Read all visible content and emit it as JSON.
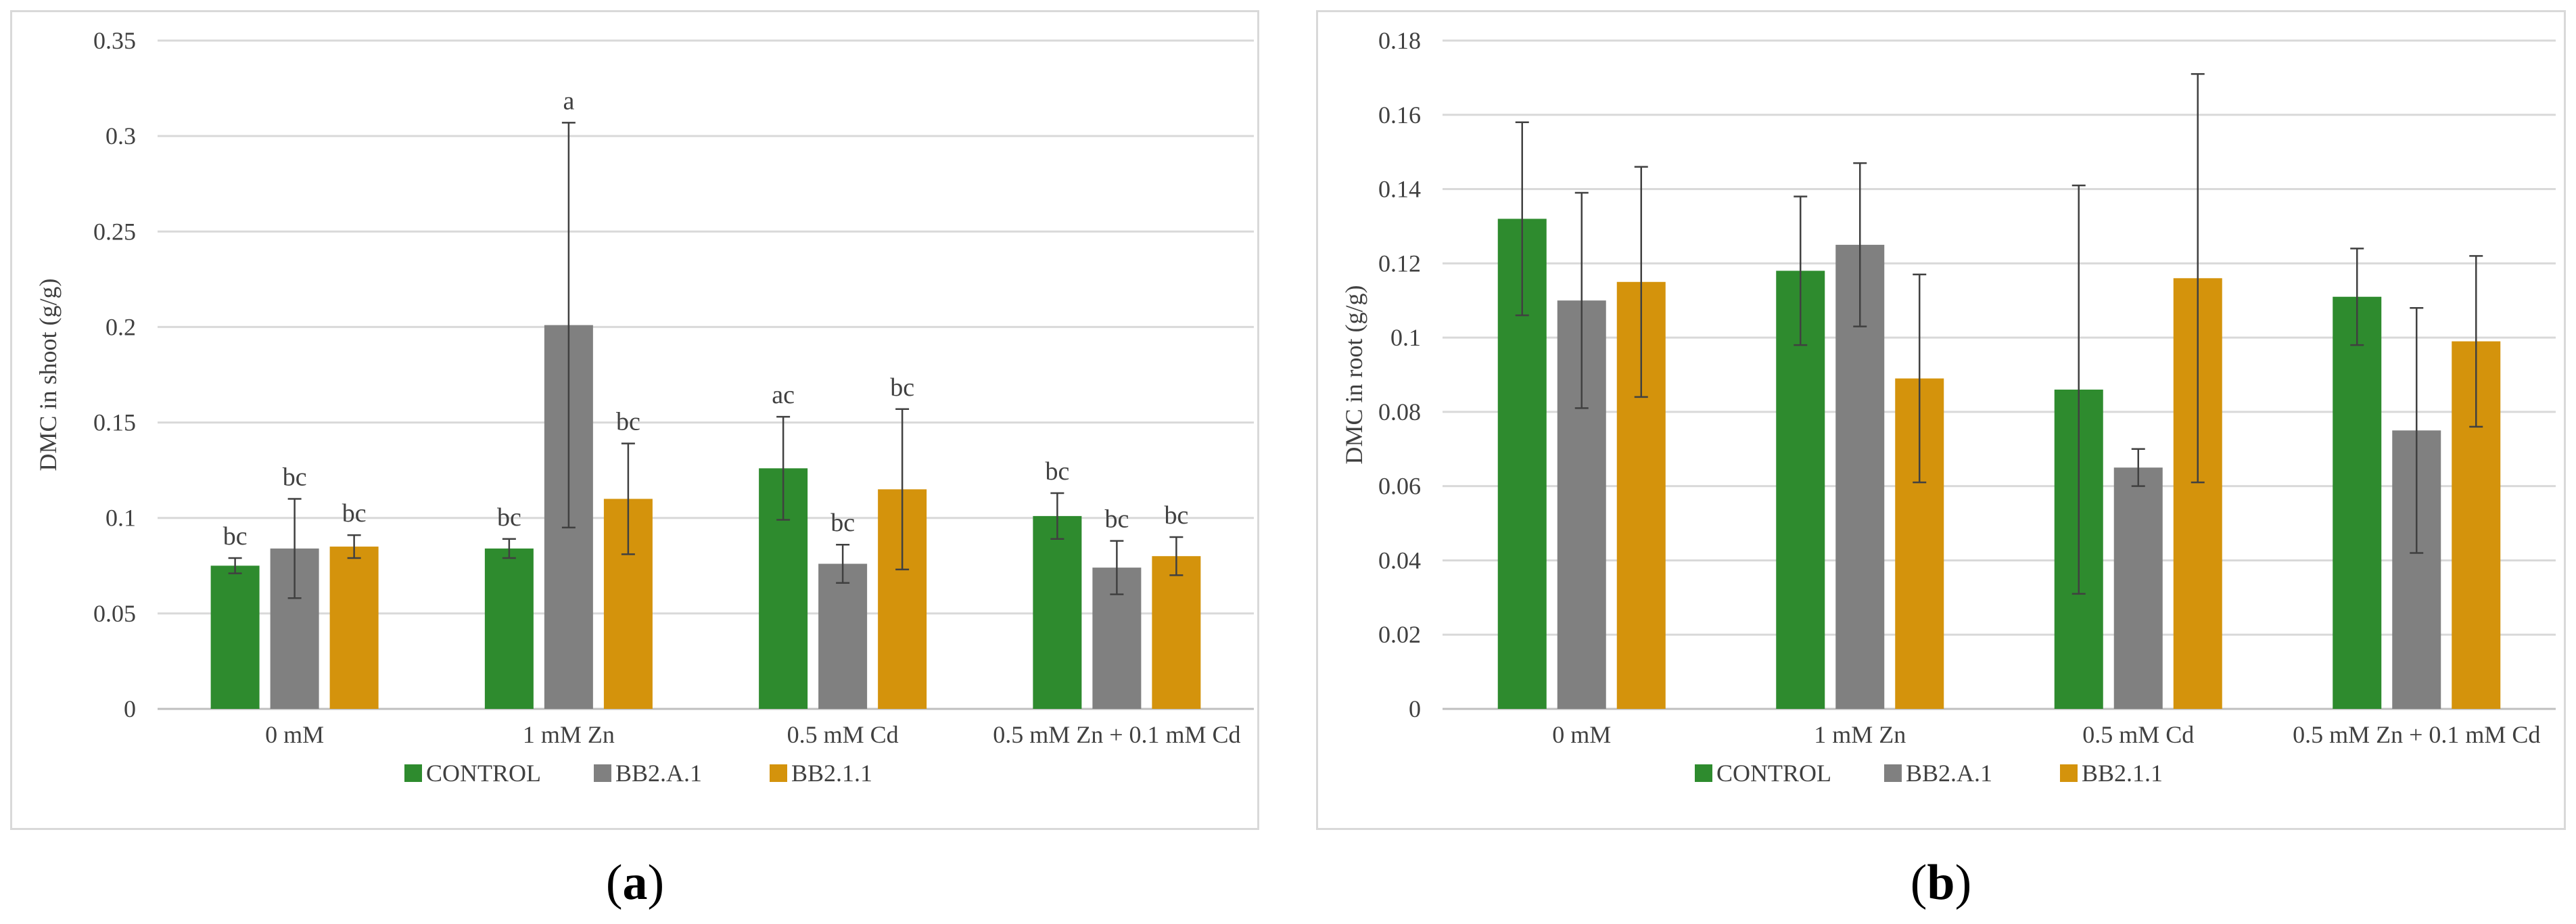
{
  "chart_data": [
    {
      "type": "bar",
      "panel_label": "a",
      "title": "",
      "xlabel": "",
      "ylabel": "DMC in shoot (g/g)",
      "ylim": [
        0,
        0.35
      ],
      "yticks": [
        0,
        0.05,
        0.1,
        0.15,
        0.2,
        0.25,
        0.3,
        0.35
      ],
      "ytick_labels": [
        "0",
        "0.05",
        "0.1",
        "0.15",
        "0.2",
        "0.25",
        "0.3",
        "0.35"
      ],
      "grid": true,
      "legend_position": "bottom",
      "categories": [
        "0 mM",
        "1 mM Zn",
        "0.5 mM Cd",
        "0.5 mM Zn + 0.1 mM Cd"
      ],
      "series": [
        {
          "name": "CONTROL",
          "color": "#2e8b2e",
          "values": [
            0.075,
            0.084,
            0.126,
            0.101
          ],
          "errors": [
            0.004,
            0.005,
            0.027,
            0.012
          ],
          "labels": [
            "bc",
            "bc",
            "ac",
            "bc"
          ]
        },
        {
          "name": "BB2.A.1",
          "color": "#808080",
          "values": [
            0.084,
            0.201,
            0.076,
            0.074
          ],
          "errors": [
            0.026,
            0.106,
            0.01,
            0.014
          ],
          "labels": [
            "bc",
            "a",
            "bc",
            "bc"
          ]
        },
        {
          "name": "BB2.1.1",
          "color": "#d4930c",
          "values": [
            0.085,
            0.11,
            0.115,
            0.08
          ],
          "errors": [
            0.006,
            0.029,
            0.042,
            0.01
          ],
          "labels": [
            "bc",
            "bc",
            "bc",
            "bc"
          ]
        }
      ]
    },
    {
      "type": "bar",
      "panel_label": "b",
      "title": "",
      "xlabel": "",
      "ylabel": "DMC in root (g/g)",
      "ylim": [
        0,
        0.18
      ],
      "yticks": [
        0,
        0.02,
        0.04,
        0.06,
        0.08,
        0.1,
        0.12,
        0.14,
        0.16,
        0.18
      ],
      "ytick_labels": [
        "0",
        "0.02",
        "0.04",
        "0.06",
        "0.08",
        "0.1",
        "0.12",
        "0.14",
        "0.16",
        "0.18"
      ],
      "grid": true,
      "legend_position": "bottom",
      "categories": [
        "0 mM",
        "1 mM Zn",
        "0.5 mM Cd",
        "0.5 mM Zn + 0.1 mM Cd"
      ],
      "series": [
        {
          "name": "CONTROL",
          "color": "#2e8b2e",
          "values": [
            0.132,
            0.118,
            0.086,
            0.111
          ],
          "errors": [
            0.026,
            0.02,
            0.055,
            0.013
          ]
        },
        {
          "name": "BB2.A.1",
          "color": "#808080",
          "values": [
            0.11,
            0.125,
            0.065,
            0.075
          ],
          "errors": [
            0.029,
            0.022,
            0.005,
            0.033
          ]
        },
        {
          "name": "BB2.1.1",
          "color": "#d4930c",
          "values": [
            0.115,
            0.089,
            0.116,
            0.099
          ],
          "errors": [
            0.031,
            0.028,
            0.055,
            0.023
          ]
        }
      ]
    }
  ]
}
